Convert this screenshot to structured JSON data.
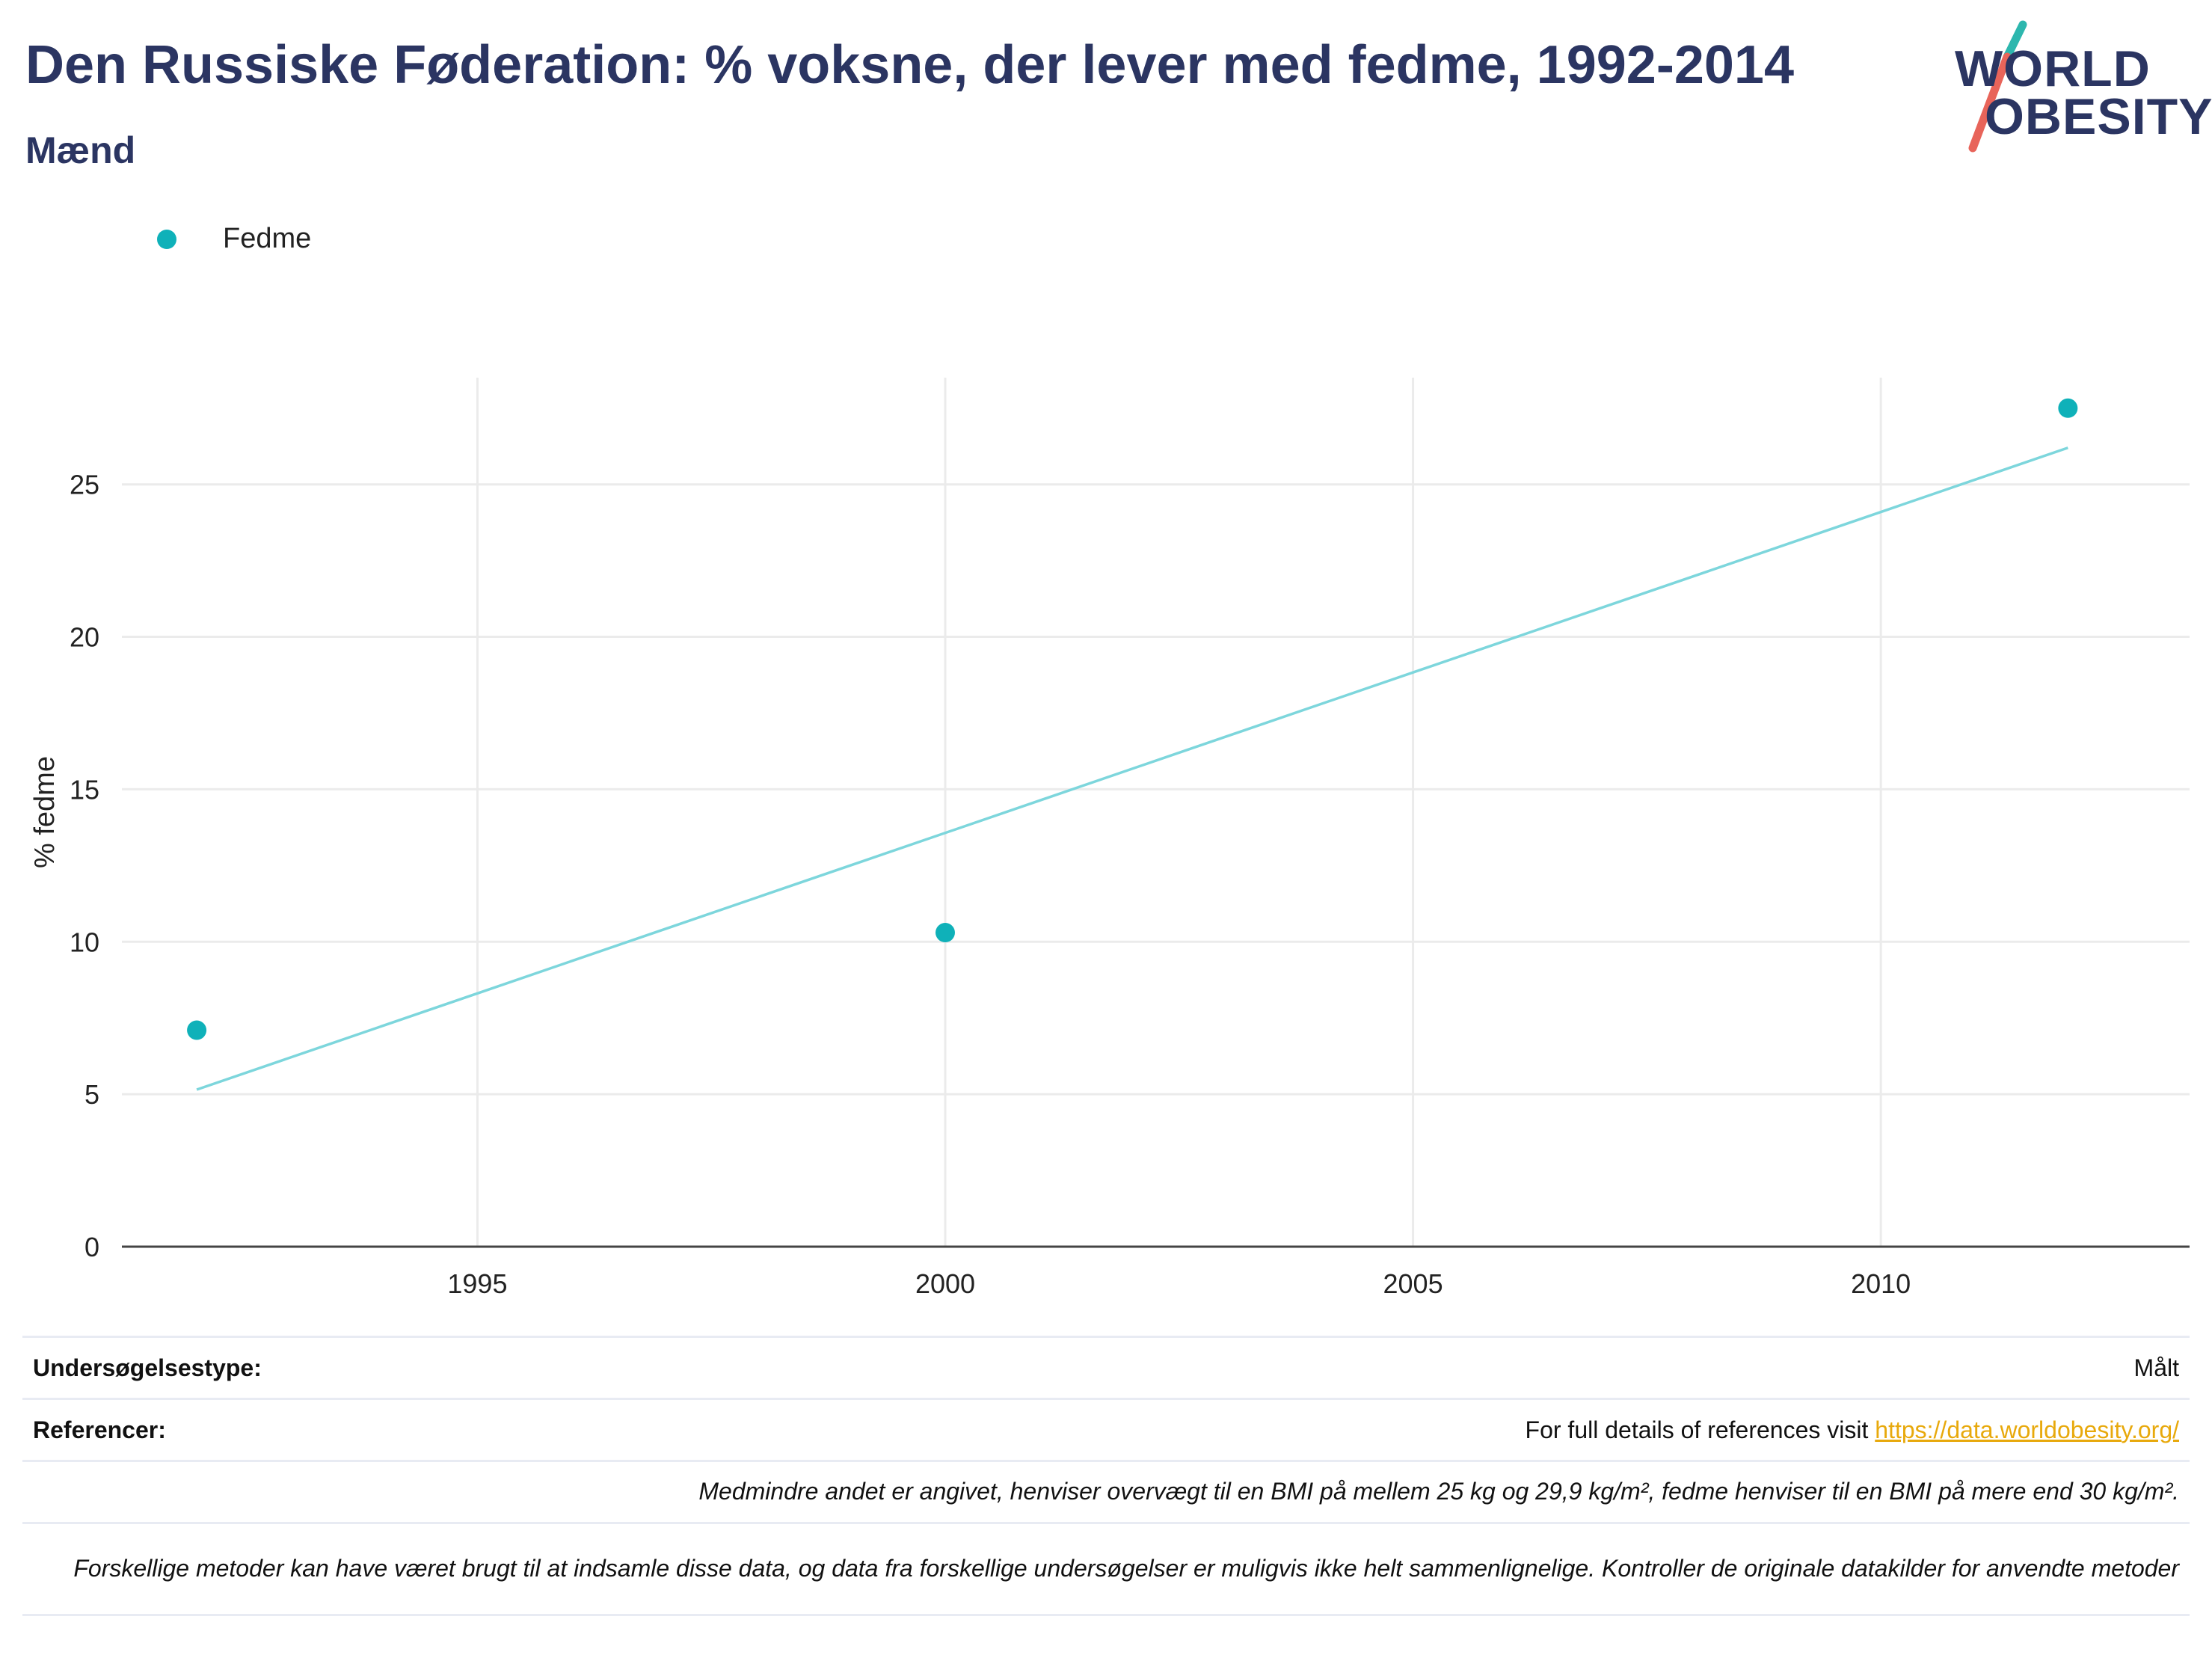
{
  "header": {
    "title": "Den Russiske Føderation: % voksne, der lever med fedme, 1992-2014",
    "subtitle": "Mænd"
  },
  "logo": {
    "line1": "WORLD",
    "line2": "OBESITY"
  },
  "legend": {
    "items": [
      {
        "label": "Fedme",
        "color": "#0fb1b9"
      }
    ]
  },
  "chart_data": {
    "type": "scatter",
    "ylabel": "% fedme",
    "xlabel": "",
    "xlim": [
      1991.2,
      2013.3
    ],
    "ylim": [
      0,
      28.5
    ],
    "x_ticks": [
      1995,
      2000,
      2005,
      2010
    ],
    "y_ticks": [
      0,
      5,
      10,
      15,
      20,
      25
    ],
    "grid": true,
    "legend_position": "top-left",
    "series": [
      {
        "name": "Fedme",
        "color": "#0fb1b9",
        "points": [
          {
            "x": 1992,
            "y": 7.1
          },
          {
            "x": 2000,
            "y": 10.3
          },
          {
            "x": 2012,
            "y": 27.5
          }
        ]
      }
    ],
    "trendline": {
      "color": "#7dd6dc",
      "points": [
        {
          "x": 1992,
          "y": 5.15
        },
        {
          "x": 2012,
          "y": 26.2
        }
      ]
    }
  },
  "info": {
    "survey_type_label": "Undersøgelsestype:",
    "survey_type_value": "Målt",
    "references_label": "Referencer:",
    "references_text": "For full details of references visit ",
    "references_link": "https://data.worldobesity.org/",
    "note_bmi": "Medmindre andet er angivet, henviser overvægt til en BMI på mellem 25 kg og 29,9 kg/m², fedme henviser til en BMI på mere end 30 kg/m².",
    "note_methods": "Forskellige metoder kan have været brugt til at indsamle disse data, og data fra forskellige undersøgelser er muligvis ikke helt sammenlignelige. Kontroller de originale datakilder for anvendte metoder"
  }
}
